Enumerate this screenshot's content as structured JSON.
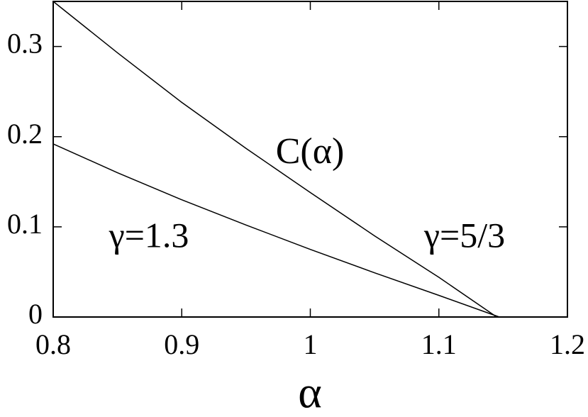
{
  "chart_data": {
    "type": "line",
    "xlabel": "α",
    "annotations": [
      "C(α)"
    ],
    "series": [
      {
        "name": "γ=5/3",
        "color": "#000000",
        "x": [
          0.8,
          0.85,
          0.9,
          0.95,
          1.0,
          1.05,
          1.1,
          1.145
        ],
        "values": [
          0.35,
          0.293,
          0.238,
          0.187,
          0.138,
          0.09,
          0.044,
          0
        ]
      },
      {
        "name": "γ=1.3",
        "color": "#000000",
        "x": [
          0.8,
          0.85,
          0.9,
          0.95,
          1.0,
          1.05,
          1.1,
          1.147
        ],
        "values": [
          0.192,
          0.16,
          0.13,
          0.102,
          0.075,
          0.049,
          0.024,
          0
        ]
      }
    ],
    "xlim": [
      0.8,
      1.2
    ],
    "xticks": [
      0.8,
      0.9,
      1,
      1.1,
      1.2
    ],
    "ylim": [
      0,
      0.35
    ],
    "yticks": [
      0,
      0.1,
      0.2,
      0.3
    ]
  }
}
